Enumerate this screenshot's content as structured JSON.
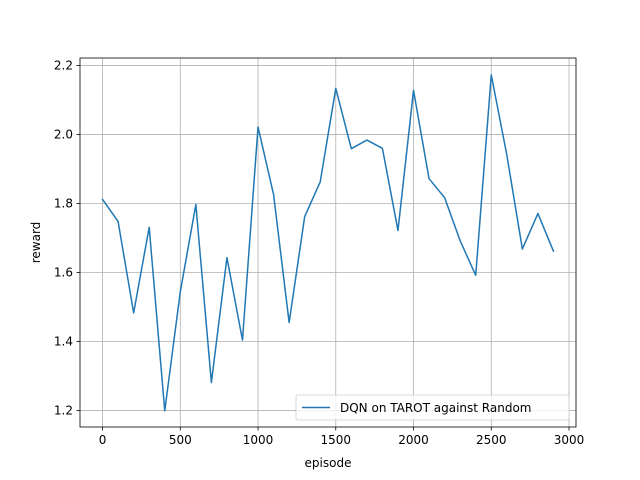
{
  "chart_data": {
    "type": "line",
    "xlabel": "episode",
    "ylabel": "reward",
    "xlim": [
      -145,
      3045
    ],
    "ylim": [
      1.152,
      2.222
    ],
    "xticks": [
      0,
      500,
      1000,
      1500,
      2000,
      2500,
      3000
    ],
    "yticks": [
      1.2,
      1.4,
      1.6,
      1.8,
      2.0,
      2.2
    ],
    "xtick_labels": [
      "0",
      "500",
      "1000",
      "1500",
      "2000",
      "2500",
      "3000"
    ],
    "ytick_labels": [
      "1.2",
      "1.4",
      "1.6",
      "1.8",
      "2.0",
      "2.2"
    ],
    "grid": true,
    "legend_position": "lower-right",
    "series": [
      {
        "name": "DQN on TAROT against Random",
        "color": "#1f77b4",
        "x": [
          0,
          100,
          200,
          300,
          400,
          500,
          600,
          700,
          800,
          900,
          1000,
          1100,
          1200,
          1300,
          1400,
          1500,
          1600,
          1700,
          1800,
          1900,
          2000,
          2100,
          2200,
          2300,
          2400,
          2500,
          2600,
          2700,
          2800,
          2900
        ],
        "y": [
          1.812,
          1.748,
          1.483,
          1.731,
          1.199,
          1.544,
          1.797,
          1.281,
          1.643,
          1.404,
          2.022,
          1.826,
          1.455,
          1.762,
          1.863,
          2.134,
          1.959,
          1.984,
          1.96,
          1.722,
          2.128,
          1.872,
          1.817,
          1.692,
          1.592,
          2.173,
          1.941,
          1.668,
          1.771,
          1.662
        ]
      }
    ]
  }
}
